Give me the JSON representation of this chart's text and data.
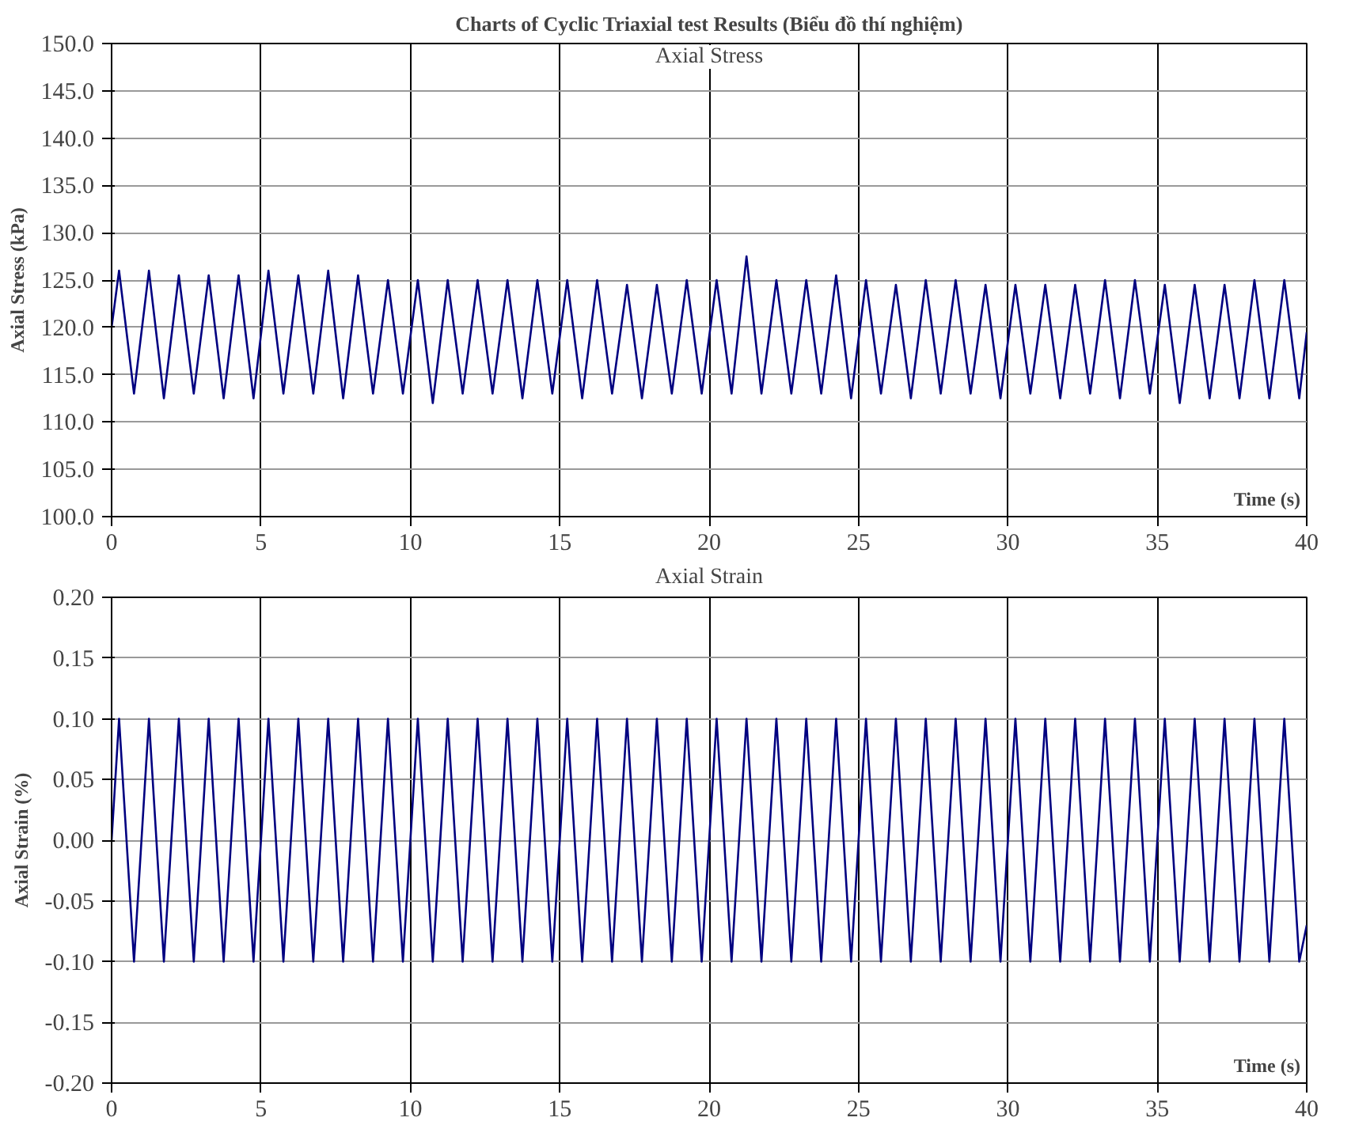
{
  "chart_data": [
    {
      "type": "line",
      "title": "Charts of Cyclic Triaxial test Results (Biểu đồ thí nghiệm)",
      "subtitle": "Axial Stress",
      "xlabel": "Time (s)",
      "ylabel": "Axial Stress (kPa)",
      "x": [
        0,
        0.25,
        0.75,
        1.25,
        1.75,
        2.25,
        2.75,
        3.25,
        3.75,
        4.25,
        4.75,
        5.25,
        5.75,
        6.25,
        6.75,
        7.25,
        7.75,
        8.25,
        8.75,
        9.25,
        9.75,
        10.25,
        10.75,
        11.25,
        11.75,
        12.25,
        12.75,
        13.25,
        13.75,
        14.25,
        14.75,
        15.25,
        15.75,
        16.25,
        16.75,
        17.25,
        17.75,
        18.25,
        18.75,
        19.25,
        19.75,
        20.25,
        20.75,
        21.25,
        21.75,
        22.25,
        22.75,
        23.25,
        23.75,
        24.25,
        24.75,
        25.25,
        25.75,
        26.25,
        26.75,
        27.25,
        27.75,
        28.25,
        28.75,
        29.25,
        29.75,
        30.25,
        30.75,
        31.25,
        31.75,
        32.25,
        32.75,
        33.25,
        33.75,
        34.25,
        34.75,
        35.25,
        35.75,
        36.25,
        36.75,
        37.25,
        37.75,
        38.25,
        38.75,
        39.25,
        39.75,
        40
      ],
      "series": [
        {
          "color": "#000080",
          "values": [
            120,
            126,
            113,
            126,
            112.5,
            125.5,
            113,
            125.5,
            112.5,
            125.5,
            112.5,
            126,
            113,
            125.5,
            113,
            126,
            112.5,
            125.5,
            113,
            125,
            113,
            125,
            112,
            125,
            113,
            125,
            113,
            125,
            112.5,
            125,
            113,
            125,
            112.5,
            125,
            113,
            124.5,
            112.5,
            124.5,
            113,
            125,
            113,
            125,
            113,
            127.5,
            113,
            125,
            113,
            125,
            113,
            125.5,
            112.5,
            125,
            113,
            124.5,
            112.5,
            125,
            113,
            125,
            113,
            124.5,
            112.5,
            124.5,
            113,
            124.5,
            112.5,
            124.5,
            113,
            125,
            112.5,
            125,
            113,
            124.5,
            112,
            124.5,
            112.5,
            124.5,
            112.5,
            125,
            112.5,
            125,
            112.5,
            119.5
          ]
        }
      ],
      "xlim": [
        0,
        40
      ],
      "xticks": [
        0,
        5,
        10,
        15,
        20,
        25,
        30,
        35,
        40
      ],
      "ylim": [
        100,
        150
      ],
      "yticks": [
        {
          "value": 100,
          "label": "100.0"
        },
        {
          "value": 105,
          "label": "105.0"
        },
        {
          "value": 110,
          "label": "110.0"
        },
        {
          "value": 115,
          "label": "115.0"
        },
        {
          "value": 120,
          "label": "120.0"
        },
        {
          "value": 125,
          "label": "125.0"
        },
        {
          "value": 130,
          "label": "130.0"
        },
        {
          "value": 135,
          "label": "135.0"
        },
        {
          "value": 140,
          "label": "140.0"
        },
        {
          "value": 145,
          "label": "145.0"
        },
        {
          "value": 150,
          "label": "150.0"
        }
      ],
      "grid": true,
      "marker": "none",
      "line_style": "solid"
    },
    {
      "type": "line",
      "title": "Axial Strain",
      "xlabel": "Time (s)",
      "ylabel": "Axial Strain (%)",
      "x": [
        0,
        0.25,
        0.75,
        1.25,
        1.75,
        2.25,
        2.75,
        3.25,
        3.75,
        4.25,
        4.75,
        5.25,
        5.75,
        6.25,
        6.75,
        7.25,
        7.75,
        8.25,
        8.75,
        9.25,
        9.75,
        10.25,
        10.75,
        11.25,
        11.75,
        12.25,
        12.75,
        13.25,
        13.75,
        14.25,
        14.75,
        15.25,
        15.75,
        16.25,
        16.75,
        17.25,
        17.75,
        18.25,
        18.75,
        19.25,
        19.75,
        20.25,
        20.75,
        21.25,
        21.75,
        22.25,
        22.75,
        23.25,
        23.75,
        24.25,
        24.75,
        25.25,
        25.75,
        26.25,
        26.75,
        27.25,
        27.75,
        28.25,
        28.75,
        29.25,
        29.75,
        30.25,
        30.75,
        31.25,
        31.75,
        32.25,
        32.75,
        33.25,
        33.75,
        34.25,
        34.75,
        35.25,
        35.75,
        36.25,
        36.75,
        37.25,
        37.75,
        38.25,
        38.75,
        39.25,
        39.75,
        40
      ],
      "series": [
        {
          "color": "#000080",
          "values": [
            0,
            0.1,
            -0.1,
            0.1,
            -0.1,
            0.1,
            -0.1,
            0.1,
            -0.1,
            0.1,
            -0.1,
            0.1,
            -0.1,
            0.1,
            -0.1,
            0.1,
            -0.1,
            0.1,
            -0.1,
            0.1,
            -0.1,
            0.1,
            -0.1,
            0.1,
            -0.1,
            0.1,
            -0.1,
            0.1,
            -0.1,
            0.1,
            -0.1,
            0.1,
            -0.1,
            0.1,
            -0.1,
            0.1,
            -0.1,
            0.1,
            -0.1,
            0.1,
            -0.1,
            0.1,
            -0.1,
            0.1,
            -0.1,
            0.1,
            -0.1,
            0.1,
            -0.1,
            0.1,
            -0.1,
            0.1,
            -0.1,
            0.1,
            -0.1,
            0.1,
            -0.1,
            0.1,
            -0.1,
            0.1,
            -0.1,
            0.1,
            -0.1,
            0.1,
            -0.1,
            0.1,
            -0.1,
            0.1,
            -0.1,
            0.1,
            -0.1,
            0.1,
            -0.1,
            0.1,
            -0.1,
            0.1,
            -0.1,
            0.1,
            -0.1,
            0.1,
            -0.1,
            -0.07
          ]
        }
      ],
      "xlim": [
        0,
        40
      ],
      "xticks": [
        0,
        5,
        10,
        15,
        20,
        25,
        30,
        35,
        40
      ],
      "ylim": [
        -0.2,
        0.2
      ],
      "yticks": [
        {
          "value": -0.2,
          "label": "-0.20"
        },
        {
          "value": -0.15,
          "label": "-0.15"
        },
        {
          "value": -0.1,
          "label": "-0.10"
        },
        {
          "value": -0.05,
          "label": "-0.05"
        },
        {
          "value": 0,
          "label": "0.00"
        },
        {
          "value": 0.05,
          "label": "0.05"
        },
        {
          "value": 0.1,
          "label": "0.10"
        },
        {
          "value": 0.15,
          "label": "0.15"
        },
        {
          "value": 0.2,
          "label": "0.20"
        }
      ],
      "grid": true,
      "marker": "none",
      "line_style": "solid"
    }
  ]
}
